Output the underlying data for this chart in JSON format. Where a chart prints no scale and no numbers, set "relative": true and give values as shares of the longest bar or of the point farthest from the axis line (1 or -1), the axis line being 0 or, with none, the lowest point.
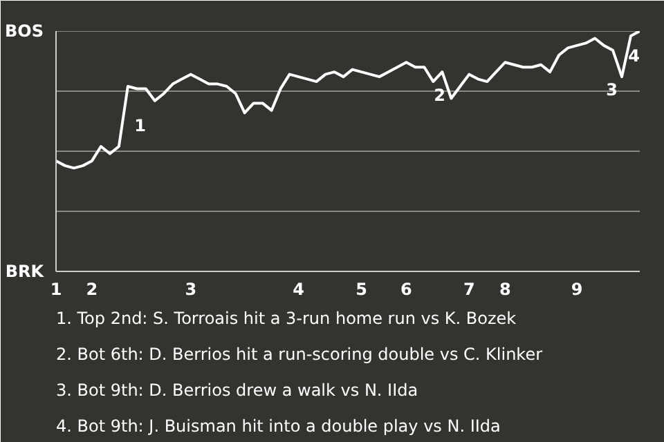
{
  "chart_data": {
    "type": "line",
    "relative": true,
    "categories": [
      "1",
      null,
      null,
      null,
      "2",
      null,
      null,
      null,
      null,
      null,
      null,
      null,
      null,
      null,
      null,
      "3",
      null,
      null,
      null,
      null,
      null,
      null,
      null,
      null,
      null,
      null,
      null,
      "4",
      null,
      null,
      null,
      null,
      null,
      null,
      "5",
      null,
      null,
      null,
      null,
      "6",
      null,
      null,
      null,
      null,
      null,
      null,
      "7",
      null,
      null,
      null,
      "8",
      null,
      null,
      null,
      null,
      null,
      null,
      null,
      "9",
      null,
      null,
      null,
      null,
      null,
      null,
      null
    ],
    "marker": "none",
    "line_style": "solid",
    "grid": "y",
    "series": [
      {
        "color": "#ffffff",
        "values": [
          0.46,
          0.44,
          0.43,
          0.44,
          0.46,
          0.52,
          0.49,
          0.52,
          0.77,
          0.76,
          0.76,
          0.71,
          0.74,
          0.78,
          0.8,
          0.82,
          0.8,
          0.78,
          0.78,
          0.77,
          0.74,
          0.66,
          0.7,
          0.7,
          0.67,
          0.76,
          0.82,
          0.81,
          0.8,
          0.79,
          0.82,
          0.83,
          0.81,
          0.84,
          0.83,
          0.82,
          0.81,
          0.83,
          0.85,
          0.87,
          0.85,
          0.85,
          0.79,
          0.83,
          0.72,
          0.77,
          0.82,
          0.8,
          0.79,
          0.83,
          0.87,
          0.86,
          0.85,
          0.85,
          0.86,
          0.83,
          0.9,
          0.93,
          0.94,
          0.95,
          0.97,
          0.94,
          0.92,
          0.81,
          0.98,
          1.0
        ]
      }
    ],
    "annotations": [
      "BOS",
      "BRK",
      "1",
      "2",
      "3",
      "4",
      "1. Top 2nd: S. Torroais hit a 3-run home run vs K. Bozek",
      "2. Bot 6th: D. Berrios hit a run-scoring double vs C. Klinker",
      "3. Bot 9th: D. Berrios drew a walk vs N. IIda",
      "4. Bot 9th: J. Buisman hit into a double play vs N. IIda"
    ]
  }
}
